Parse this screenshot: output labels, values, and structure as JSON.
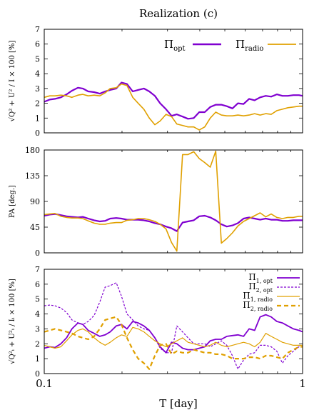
{
  "chart_data": {
    "title": "Realization (c)",
    "xlabel": "T [day]",
    "x_scale": "log",
    "xlim": [
      0.1,
      1
    ],
    "x_ticks": [
      "0.1",
      "1"
    ],
    "colors": {
      "opt": "#8000d0",
      "radio": "#e0a000"
    },
    "x": [
      0.1,
      0.105,
      0.11,
      0.116,
      0.122,
      0.128,
      0.135,
      0.141,
      0.148,
      0.156,
      0.164,
      0.172,
      0.18,
      0.19,
      0.199,
      0.209,
      0.22,
      0.231,
      0.243,
      0.255,
      0.268,
      0.281,
      0.296,
      0.311,
      0.326,
      0.343,
      0.36,
      0.379,
      0.398,
      0.418,
      0.439,
      0.461,
      0.485,
      0.509,
      0.535,
      0.562,
      0.591,
      0.621,
      0.652,
      0.685,
      0.72,
      0.756,
      0.795,
      0.835,
      0.877,
      0.921,
      0.968,
      1.0
    ],
    "panels": [
      {
        "type": "line",
        "ylabel": "√Q² + U² / I × 100 [%]",
        "ylim": [
          0,
          7
        ],
        "y_ticks": [
          "0",
          "1",
          "2",
          "3",
          "4",
          "5",
          "6",
          "7"
        ],
        "legend": {
          "placement": "top-right",
          "entries": [
            {
              "label": "Πopt",
              "color": "#8000d0"
            },
            {
              "label": "Πradio",
              "color": "#e0a000"
            }
          ]
        },
        "series": [
          {
            "label": "Πopt",
            "color": "#8000d0",
            "width": 2.2,
            "dash": "",
            "values": [
              2.1,
              2.25,
              2.3,
              2.4,
              2.6,
              2.85,
              3.05,
              3.0,
              2.8,
              2.75,
              2.65,
              2.8,
              2.9,
              3.0,
              3.4,
              3.3,
              2.8,
              2.9,
              3.0,
              2.8,
              2.5,
              2.0,
              1.6,
              1.15,
              1.25,
              1.1,
              0.95,
              1.0,
              1.4,
              1.4,
              1.75,
              1.9,
              1.9,
              1.8,
              1.65,
              2.0,
              1.95,
              2.3,
              2.2,
              2.4,
              2.5,
              2.45,
              2.6,
              2.5,
              2.5,
              2.55,
              2.55,
              2.5
            ]
          },
          {
            "label": "Πradio",
            "color": "#e0a000",
            "width": 1.6,
            "dash": "",
            "values": [
              2.4,
              2.5,
              2.5,
              2.55,
              2.5,
              2.4,
              2.55,
              2.6,
              2.5,
              2.55,
              2.5,
              2.7,
              3.0,
              3.05,
              3.3,
              3.2,
              2.4,
              2.0,
              1.6,
              1.0,
              0.55,
              0.8,
              1.25,
              1.1,
              0.6,
              0.5,
              0.4,
              0.4,
              0.2,
              0.4,
              1.0,
              1.4,
              1.2,
              1.15,
              1.15,
              1.2,
              1.15,
              1.2,
              1.3,
              1.2,
              1.3,
              1.25,
              1.5,
              1.6,
              1.7,
              1.75,
              1.8,
              1.8
            ]
          }
        ]
      },
      {
        "type": "line",
        "ylabel": "PA [deg.]",
        "ylim": [
          0,
          180
        ],
        "y_ticks": [
          "0",
          "45",
          "90",
          "135",
          "180"
        ],
        "series": [
          {
            "label": "Πopt",
            "color": "#8000d0",
            "width": 2.2,
            "dash": "",
            "values": [
              65,
              67,
              68,
              66,
              64,
              63,
              62,
              63,
              60,
              57,
              55,
              56,
              60,
              61,
              60,
              58,
              58,
              58,
              57,
              55,
              52,
              50,
              46,
              43,
              38,
              53,
              55,
              57,
              64,
              65,
              62,
              57,
              50,
              46,
              48,
              52,
              60,
              62,
              60,
              58,
              60,
              58,
              58,
              56,
              56,
              57,
              57,
              57
            ]
          },
          {
            "label": "Πradio",
            "color": "#e0a000",
            "width": 1.6,
            "dash": "",
            "values": [
              67,
              68,
              69,
              64,
              62,
              61,
              61,
              60,
              56,
              52,
              50,
              50,
              52,
              53,
              53,
              57,
              58,
              60,
              60,
              58,
              55,
              50,
              42,
              18,
              3,
              172,
              172,
              177,
              165,
              158,
              150,
              178,
              17,
              25,
              35,
              47,
              55,
              60,
              65,
              70,
              63,
              68,
              62,
              60,
              62,
              62,
              64,
              64
            ]
          }
        ]
      },
      {
        "type": "line",
        "ylabel": "√Q²ᵢ + U²ᵢ / Iᵢ × 100 [%]",
        "ylim": [
          0,
          7
        ],
        "y_ticks": [
          "0",
          "1",
          "2",
          "3",
          "4",
          "5",
          "6",
          "7"
        ],
        "legend": {
          "placement": "top-right",
          "entries": [
            {
              "label": "Π1, opt",
              "color": "#8000d0"
            },
            {
              "label": "Π2, opt",
              "color": "#8000d0"
            },
            {
              "label": "Π1, radio",
              "color": "#e0a000"
            },
            {
              "label": "Π2, radio",
              "color": "#e0a000"
            }
          ]
        },
        "series": [
          {
            "label": "Π1, opt",
            "color": "#8000d0",
            "width": 1.8,
            "dash": "",
            "values": [
              1.7,
              1.8,
              1.75,
              2.0,
              2.4,
              3.0,
              3.4,
              3.3,
              2.9,
              2.7,
              2.5,
              2.6,
              2.8,
              3.2,
              3.3,
              3.0,
              3.5,
              3.4,
              3.2,
              2.9,
              2.4,
              1.8,
              1.4,
              2.1,
              2.0,
              1.7,
              1.6,
              1.6,
              1.7,
              1.8,
              2.2,
              2.3,
              2.3,
              2.5,
              2.55,
              2.6,
              2.5,
              3.0,
              2.9,
              3.8,
              3.95,
              3.8,
              3.5,
              3.4,
              3.2,
              3.0,
              2.9,
              2.8
            ]
          },
          {
            "label": "Π2, opt",
            "color": "#8000d0",
            "width": 1.2,
            "dash": "3,2",
            "values": [
              4.55,
              4.6,
              4.55,
              4.4,
              4.1,
              3.6,
              3.4,
              3.3,
              3.5,
              3.9,
              4.8,
              5.8,
              5.9,
              6.1,
              5.2,
              4.0,
              3.6,
              3.2,
              3.0,
              2.9,
              2.4,
              1.7,
              1.4,
              1.4,
              3.2,
              2.8,
              2.4,
              2.0,
              2.0,
              2.0,
              1.8,
              2.0,
              2.2,
              1.9,
              1.2,
              0.3,
              0.9,
              1.3,
              1.4,
              1.9,
              1.9,
              1.8,
              1.5,
              0.7,
              1.2,
              1.5,
              1.8,
              1.8
            ]
          },
          {
            "label": "Π1, radio",
            "color": "#e0a000",
            "width": 1.2,
            "dash": "",
            "values": [
              1.9,
              1.8,
              1.7,
              1.8,
              2.2,
              2.6,
              2.9,
              3.0,
              2.8,
              2.4,
              2.1,
              1.9,
              2.1,
              2.4,
              2.6,
              2.5,
              3.1,
              3.0,
              2.8,
              2.5,
              2.2,
              2.0,
              1.8,
              2.0,
              2.2,
              2.4,
              2.1,
              2.0,
              1.9,
              1.8,
              1.9,
              2.1,
              1.9,
              1.8,
              1.9,
              2.0,
              2.1,
              2.0,
              1.8,
              2.1,
              2.7,
              2.5,
              2.3,
              2.1,
              2.0,
              1.9,
              1.9,
              1.9
            ]
          },
          {
            "label": "Π2, radio",
            "color": "#e0a000",
            "width": 2.2,
            "dash": "6,4",
            "values": [
              2.8,
              2.9,
              3.0,
              2.9,
              2.8,
              2.7,
              2.5,
              2.4,
              2.3,
              2.5,
              3.0,
              3.6,
              3.7,
              3.8,
              3.3,
              2.4,
              1.6,
              1.0,
              0.7,
              0.3,
              1.2,
              1.9,
              2.0,
              1.3,
              1.5,
              1.4,
              1.4,
              1.6,
              1.5,
              1.4,
              1.4,
              1.3,
              1.3,
              1.2,
              1.0,
              1.0,
              1.0,
              1.1,
              1.1,
              1.0,
              1.2,
              1.2,
              1.1,
              1.0,
              1.4,
              1.6,
              1.8,
              1.8
            ]
          }
        ]
      }
    ]
  }
}
